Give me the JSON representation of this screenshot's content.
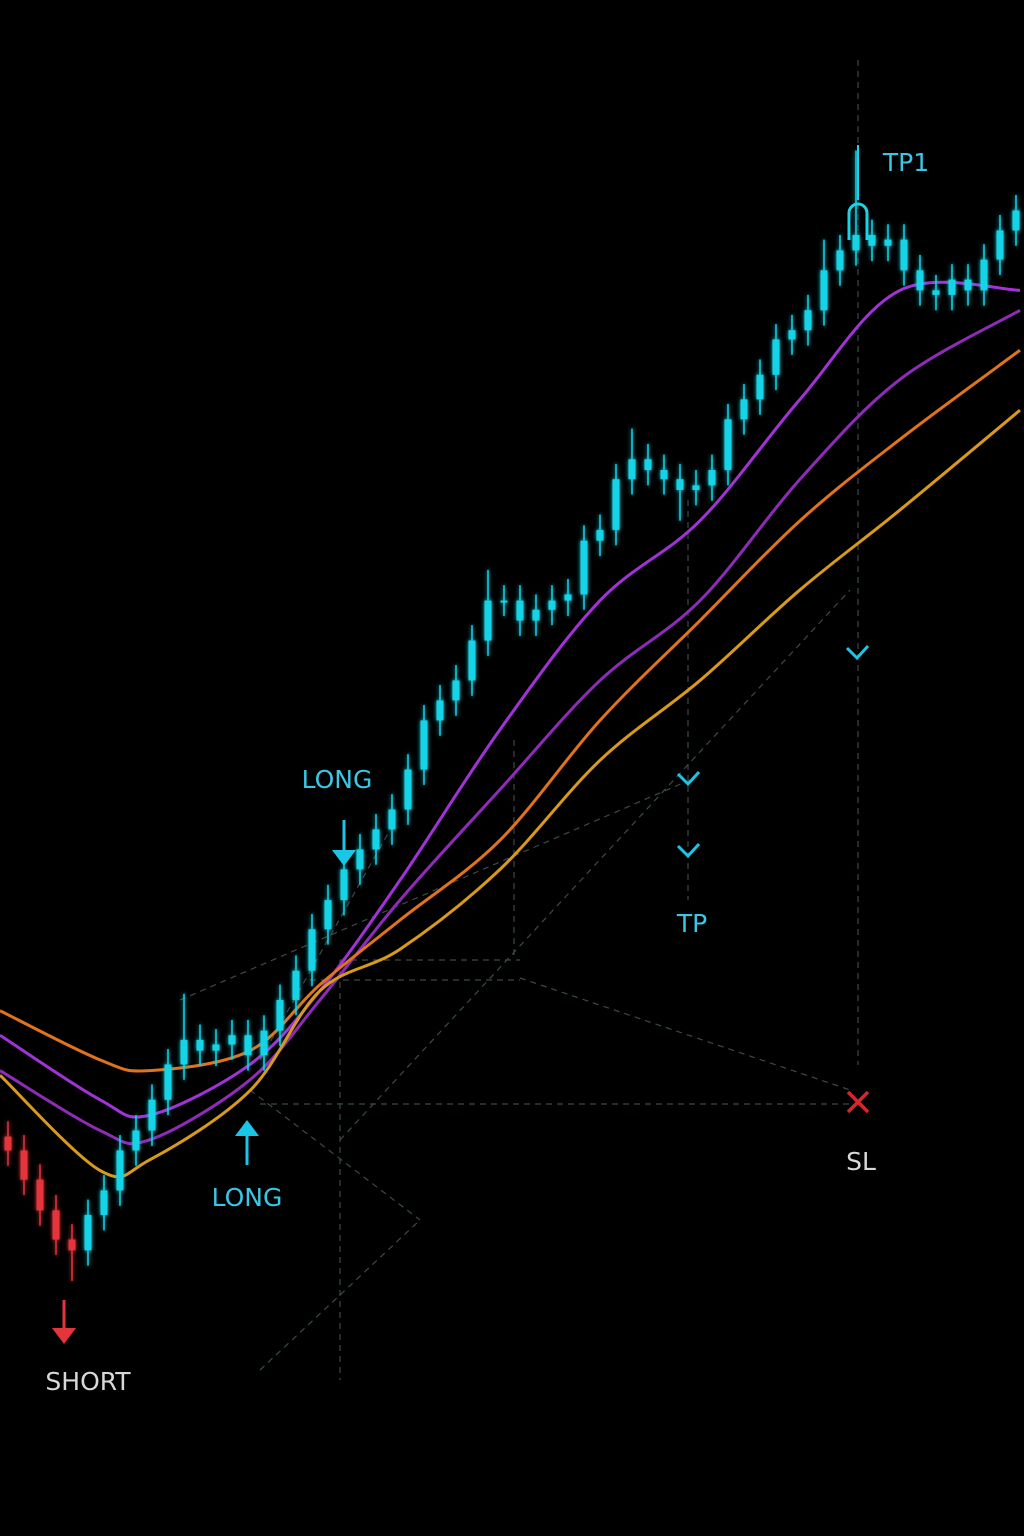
{
  "chart_data": {
    "type": "candlestick",
    "ylim": [
      0,
      100
    ],
    "xlim": [
      -0.5,
      63.5
    ],
    "candles": {
      "open": [
        26.0,
        25.1,
        23.2,
        21.2,
        19.3,
        18.6,
        20.9,
        22.5,
        25.1,
        26.4,
        28.4,
        30.7,
        32.3,
        31.6,
        32.0,
        32.6,
        31.3,
        32.9,
        34.9,
        36.8,
        39.5,
        41.4,
        43.4,
        44.7,
        46.0,
        47.3,
        49.9,
        53.1,
        54.4,
        55.7,
        58.3,
        60.9,
        60.9,
        59.6,
        60.3,
        60.9,
        61.3,
        64.8,
        65.5,
        68.8,
        70.1,
        69.4,
        68.8,
        68.1,
        68.4,
        69.4,
        72.7,
        74.0,
        75.6,
        77.9,
        78.5,
        79.8,
        82.4,
        83.7,
        84.7,
        84.0,
        84.4,
        82.4,
        81.1,
        80.8,
        81.8,
        81.1,
        83.1,
        85.0
      ],
      "high": [
        27.0,
        26.1,
        24.2,
        22.2,
        20.3,
        21.9,
        23.5,
        26.1,
        27.4,
        29.4,
        31.7,
        35.3,
        33.3,
        33.0,
        33.6,
        33.6,
        33.9,
        35.9,
        37.8,
        40.5,
        42.4,
        44.4,
        45.7,
        47.0,
        48.3,
        50.9,
        54.1,
        55.4,
        56.7,
        59.3,
        62.9,
        61.9,
        61.9,
        61.3,
        61.9,
        62.3,
        65.8,
        66.5,
        69.8,
        72.1,
        71.1,
        70.4,
        69.8,
        69.4,
        70.4,
        73.7,
        75.0,
        76.6,
        78.9,
        79.5,
        80.8,
        84.4,
        84.7,
        90.2,
        85.7,
        85.4,
        85.4,
        83.4,
        82.1,
        82.8,
        82.8,
        84.1,
        86.0,
        87.3
      ],
      "low": [
        24.1,
        22.2,
        20.2,
        18.3,
        16.6,
        17.6,
        19.9,
        21.5,
        24.1,
        25.4,
        27.4,
        29.7,
        30.6,
        30.6,
        31.0,
        30.3,
        30.3,
        31.9,
        33.9,
        35.8,
        38.5,
        40.4,
        42.4,
        43.7,
        45.0,
        46.3,
        48.9,
        52.1,
        53.4,
        54.7,
        57.3,
        59.9,
        58.6,
        58.6,
        59.3,
        59.9,
        60.3,
        63.8,
        64.5,
        67.8,
        68.4,
        67.8,
        66.1,
        67.1,
        67.4,
        68.4,
        71.7,
        73.0,
        74.6,
        76.9,
        77.5,
        78.8,
        81.4,
        82.7,
        83.0,
        83.0,
        81.4,
        80.1,
        79.8,
        79.8,
        80.1,
        80.1,
        82.1,
        84.0
      ],
      "close": [
        25.1,
        23.2,
        21.2,
        19.3,
        18.6,
        20.9,
        22.5,
        25.1,
        26.4,
        28.4,
        30.7,
        32.3,
        31.6,
        32.0,
        32.6,
        31.3,
        32.9,
        34.9,
        36.8,
        39.5,
        41.4,
        43.4,
        44.7,
        46.0,
        47.3,
        49.9,
        53.1,
        54.4,
        55.7,
        58.3,
        60.9,
        60.9,
        59.6,
        60.3,
        60.9,
        61.3,
        64.8,
        65.5,
        68.8,
        70.1,
        69.4,
        68.8,
        68.1,
        68.4,
        69.4,
        72.7,
        74.0,
        75.6,
        77.9,
        78.5,
        79.8,
        82.4,
        83.7,
        84.7,
        84.0,
        84.4,
        82.4,
        81.1,
        80.8,
        81.8,
        81.1,
        83.1,
        85.0,
        86.3
      ],
      "colors": [
        "#e3353b",
        "#e3353b",
        "#e3353b",
        "#e3353b",
        "#e3353b",
        "#19d3e6",
        "#19d3e6",
        "#19d3e6",
        "#19d3e6",
        "#19d3e6",
        "#19d3e6",
        "#19d3e6",
        "#19d3e6",
        "#19d3e6",
        "#19d3e6",
        "#19d3e6",
        "#19d3e6",
        "#19d3e6",
        "#19d3e6",
        "#19d3e6",
        "#19d3e6",
        "#19d3e6",
        "#19d3e6",
        "#19d3e6",
        "#19d3e6",
        "#19d3e6",
        "#19d3e6",
        "#19d3e6",
        "#19d3e6",
        "#19d3e6",
        "#19d3e6",
        "#19d3e6",
        "#19d3e6",
        "#19d3e6",
        "#19d3e6",
        "#19d3e6",
        "#19d3e6",
        "#19d3e6",
        "#19d3e6",
        "#19d3e6",
        "#19d3e6",
        "#19d3e6",
        "#19d3e6",
        "#19d3e6",
        "#19d3e6",
        "#19d3e6",
        "#19d3e6",
        "#19d3e6",
        "#19d3e6",
        "#19d3e6",
        "#19d3e6",
        "#19d3e6",
        "#19d3e6",
        "#19d3e6",
        "#19d3e6",
        "#19d3e6",
        "#19d3e6",
        "#19d3e6",
        "#19d3e6",
        "#19d3e6",
        "#19d3e6",
        "#19d3e6",
        "#19d3e6",
        "#19d3e6"
      ]
    },
    "lines": [
      {
        "color": "#a232d8",
        "x": [
          -0.5,
          5.75,
          8.875,
          15.125,
          19.5,
          24.5,
          30.75,
          37,
          43.25,
          49.5,
          55.75,
          63.25
        ],
        "values": [
          32.6,
          28.4,
          27.4,
          30.7,
          35.5,
          42.7,
          52.5,
          60.9,
          66.1,
          74.0,
          81.1,
          81.1
        ]
      },
      {
        "color": "#8e2bb8",
        "x": [
          -0.5,
          5.75,
          8.875,
          15.125,
          19.5,
          24.5,
          30.75,
          37,
          43.25,
          49.5,
          55.75,
          63.25
        ],
        "values": [
          30.3,
          26.4,
          25.8,
          29.7,
          34.9,
          41.4,
          48.6,
          55.7,
          60.9,
          68.8,
          75.3,
          79.8
        ]
      },
      {
        "color": "#e0731c",
        "x": [
          -0.5,
          5.75,
          8.875,
          15.125,
          19.5,
          24.5,
          30.75,
          37,
          43.25,
          49.5,
          55.75,
          63.25
        ],
        "values": [
          34.2,
          31.0,
          30.3,
          31.6,
          35.9,
          40.1,
          45.3,
          53.1,
          59.6,
          66.1,
          71.4,
          77.2
        ]
      },
      {
        "color": "#d99a1a",
        "x": [
          -0.5,
          5.75,
          8.875,
          15.125,
          19.5,
          24.5,
          30.75,
          37,
          43.25,
          49.5,
          55.75,
          63.25
        ],
        "values": [
          30.0,
          23.8,
          24.5,
          29.0,
          35.5,
          38.2,
          43.4,
          50.5,
          55.7,
          61.6,
          66.8,
          73.3
        ]
      }
    ],
    "annotations": [
      "LONG",
      "LONG",
      "SHORT",
      "TP",
      "TP1",
      "SL"
    ]
  }
}
